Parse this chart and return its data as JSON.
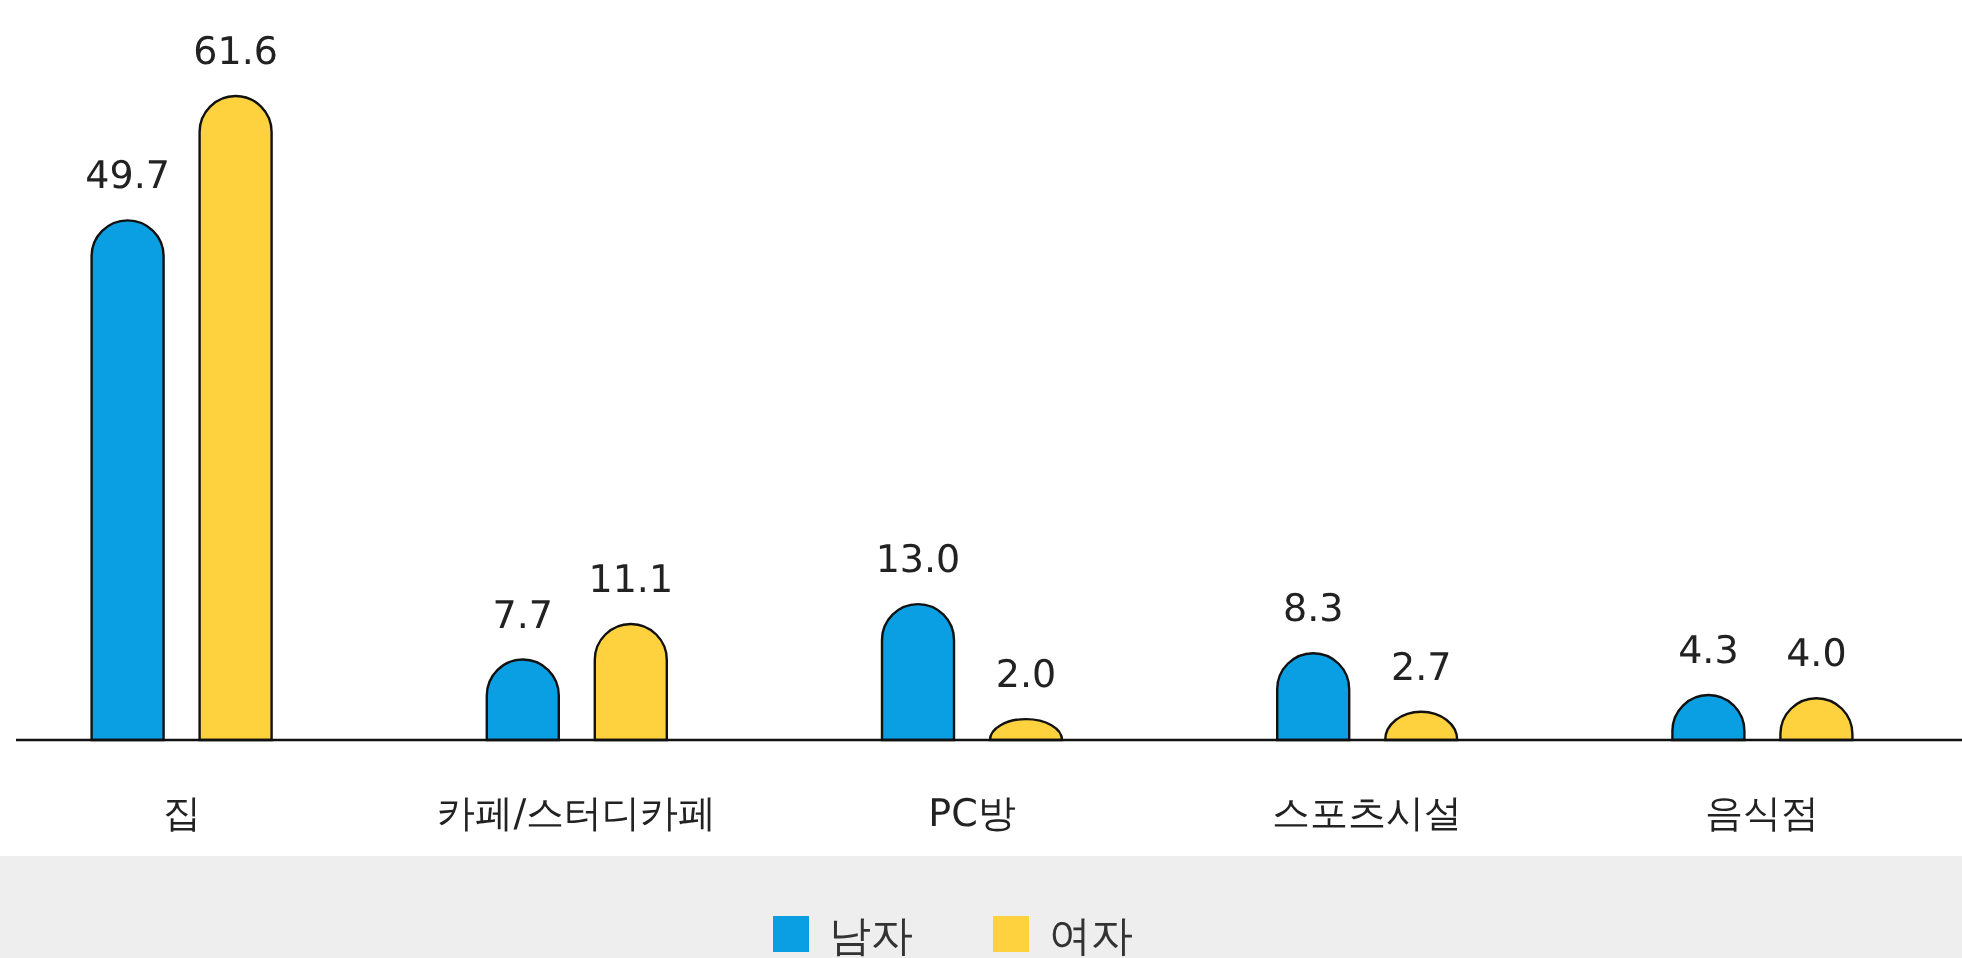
{
  "chart_data": {
    "type": "bar",
    "categories": [
      "집",
      "카페/스터디카페",
      "PC방",
      "스포츠시설",
      "음식점"
    ],
    "series": [
      {
        "name": "남자",
        "color": "#0a9fe3",
        "values": [
          49.7,
          7.7,
          13.0,
          8.3,
          4.3
        ],
        "value_labels": [
          "49.7",
          "7.7",
          "13.0",
          "8.3",
          "4.3"
        ]
      },
      {
        "name": "여자",
        "color": "#fdd23e",
        "values": [
          61.6,
          11.1,
          2.0,
          2.7,
          4.0
        ],
        "value_labels": [
          "61.6",
          "11.1",
          "2.0",
          "2.7",
          "4.0"
        ]
      }
    ],
    "legend": "bottom"
  }
}
